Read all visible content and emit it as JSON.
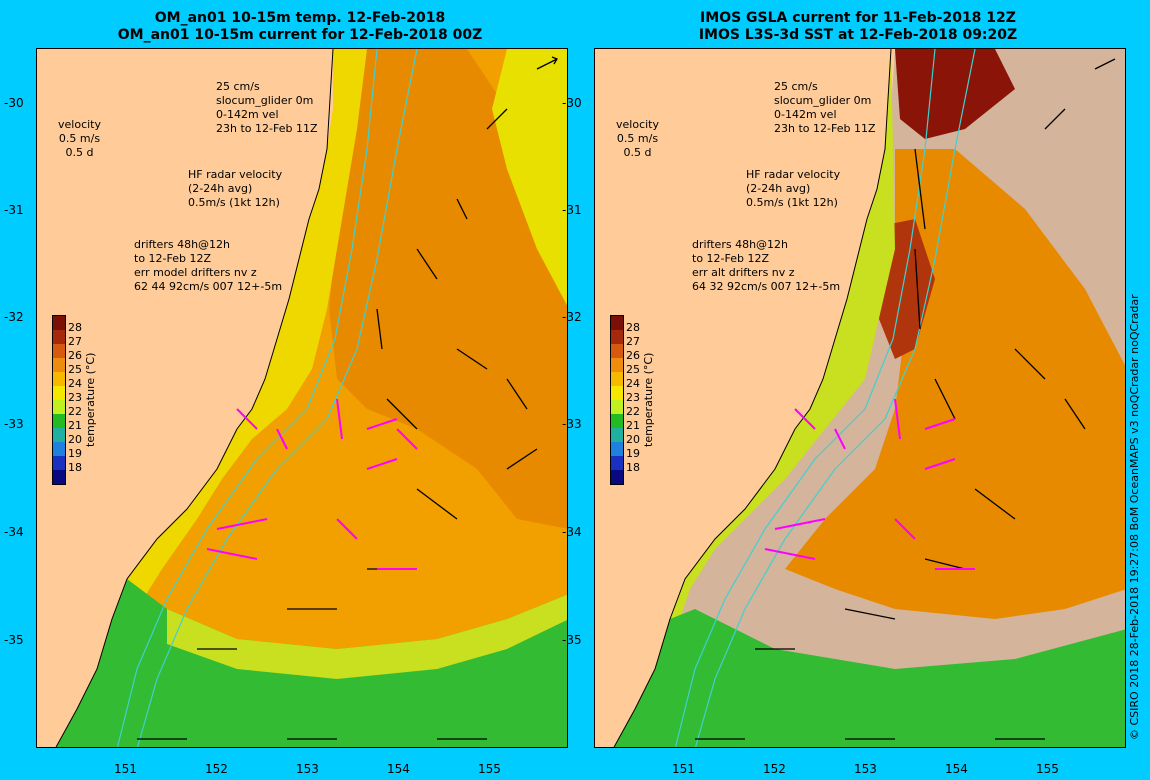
{
  "left_panel": {
    "title_lines": [
      "OM_an01 10-15m temp. 12-Feb-2018",
      "OM_an01 10-15m current for 12-Feb-2018 00Z"
    ],
    "legend": {
      "velocity": [
        "velocity",
        "0.5 m/s",
        "0.5 d"
      ],
      "glider": [
        "25 cm/s",
        "slocum_glider 0m",
        "0-142m vel",
        "23h to 12-Feb 11Z"
      ],
      "radar": [
        "HF radar velocity",
        "(2-24h avg)",
        "0.5m/s (1kt 12h)"
      ],
      "drifters": [
        "drifters 48h@12h",
        "to 12-Feb 12Z",
        "err model drifters nv z",
        "62 44 92cm/s 007 12+-5m"
      ]
    },
    "colorbar_title": "temperature (°C)"
  },
  "right_panel": {
    "title_lines": [
      "IMOS GSLA current for 11-Feb-2018 12Z",
      "IMOS L3S-3d SST at 12-Feb-2018 09:20Z"
    ],
    "legend": {
      "velocity": [
        "velocity",
        "0.5 m/s",
        "0.5 d"
      ],
      "glider": [
        "25 cm/s",
        "slocum_glider 0m",
        "0-142m vel",
        "23h to 12-Feb 11Z"
      ],
      "radar": [
        "HF radar velocity",
        "(2-24h avg)",
        "0.5m/s (1kt 12h)"
      ],
      "drifters": [
        "drifters 48h@12h",
        "to 12-Feb 12Z",
        "err alt drifters nv z",
        "64 32 92cm/s 007 12+-5m"
      ]
    },
    "colorbar_title": "temperature (°C)"
  },
  "lat_ticks": [
    "-30",
    "-31",
    "-32",
    "-33",
    "-34",
    "-35"
  ],
  "lon_ticks": [
    "151",
    "152",
    "153",
    "154",
    "155"
  ],
  "colorbar": {
    "labels": [
      "28",
      "27",
      "26",
      "25",
      "24",
      "23",
      "22",
      "21",
      "20",
      "19",
      "18"
    ],
    "colors": [
      "#7a1008",
      "#a52a0c",
      "#d55a10",
      "#ee8c10",
      "#f7b800",
      "#f4e800",
      "#c0f020",
      "#22bb22",
      "#20b0a0",
      "#2080e0",
      "#1a30c0",
      "#0a0a80"
    ]
  },
  "credit": "© CSIRO 2018   28-Feb-2018 19:27:08 BoM OceanMAPS v3 noQCradar noQCradar",
  "colors": {
    "land": "#ffcc99",
    "land_grey": "#d4b49a",
    "vector_black": "#000000",
    "vector_magenta": "#ff00ff",
    "isobath": "#40d0d0",
    "background": "#00ccff"
  }
}
